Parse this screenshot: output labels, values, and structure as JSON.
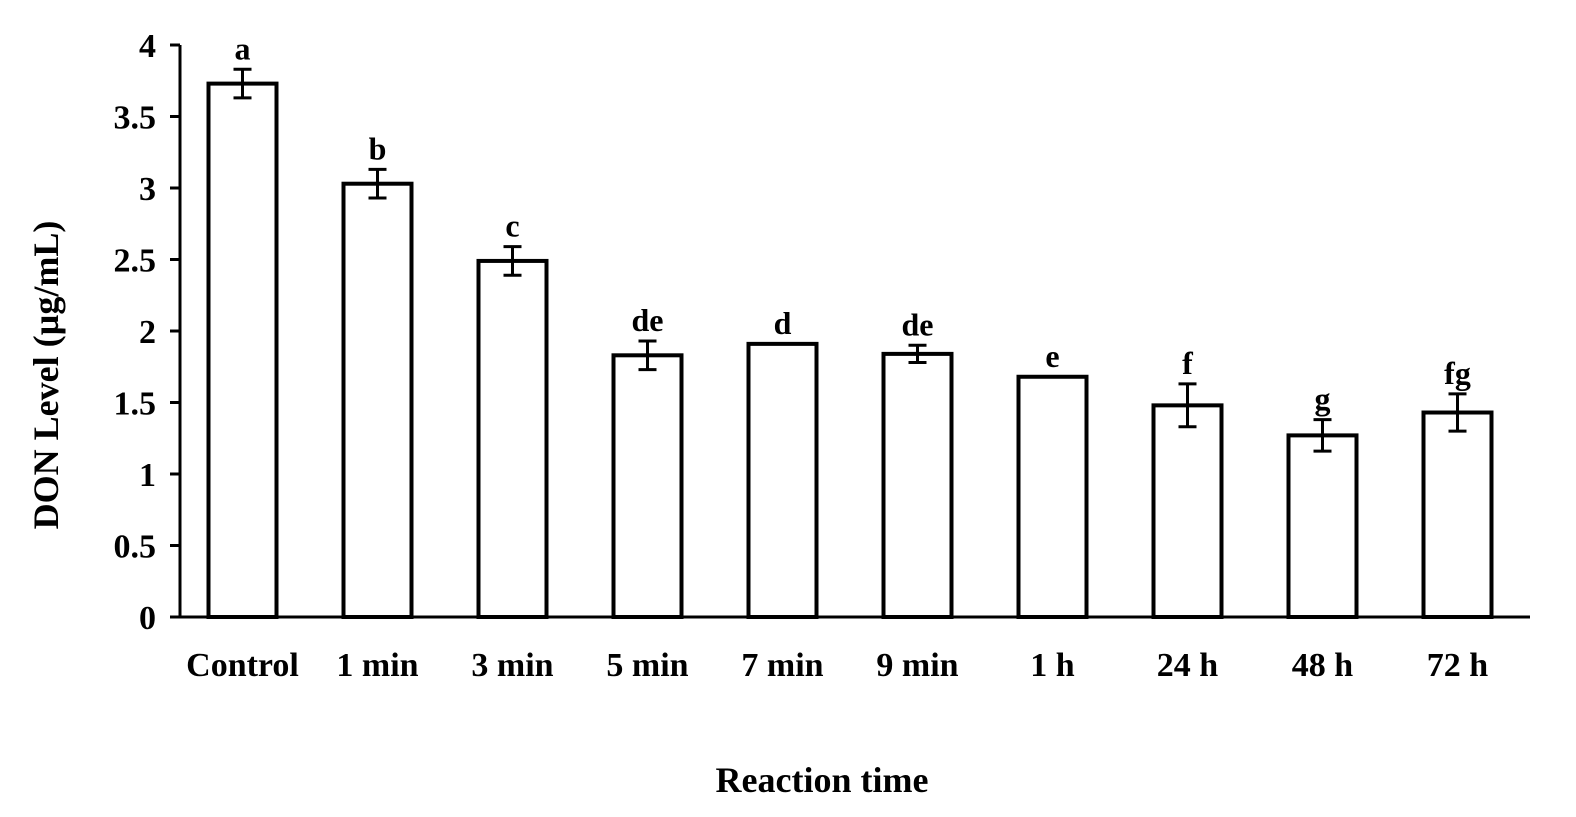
{
  "chart_data": {
    "type": "bar",
    "title": "",
    "xlabel": "Reaction time",
    "ylabel": "DON Level (µg/mL)",
    "ylim": [
      0,
      4
    ],
    "yticks": [
      "0",
      "0.5",
      "1",
      "1.5",
      "2",
      "2.5",
      "3",
      "3.5",
      "4"
    ],
    "categories": [
      "Control",
      "1 min",
      "3 min",
      "5 min",
      "7 min",
      "9 min",
      "1 h",
      "24 h",
      "48 h",
      "72 h"
    ],
    "values": [
      3.73,
      3.03,
      2.49,
      1.83,
      1.91,
      1.84,
      1.68,
      1.48,
      1.27,
      1.43
    ],
    "errors": [
      0.1,
      0.1,
      0.1,
      0.1,
      0.0,
      0.06,
      0.0,
      0.15,
      0.11,
      0.13
    ],
    "significance_letters": [
      "a",
      "b",
      "c",
      "de",
      "d",
      "de",
      "e",
      "f",
      "g",
      "fg"
    ],
    "bar_fill": "#ffffff",
    "bar_stroke": "#000000",
    "grid": false,
    "legend": "none"
  }
}
